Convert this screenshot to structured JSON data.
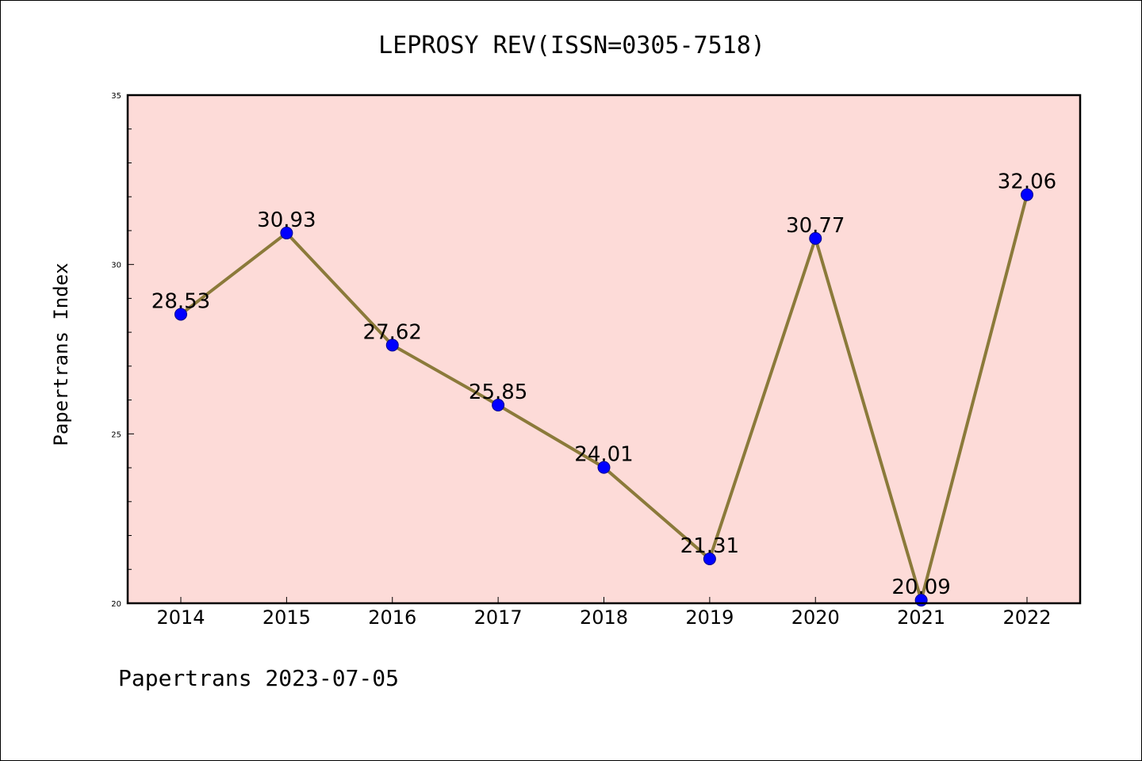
{
  "chart_data": {
    "type": "line",
    "title": "LEPROSY REV(ISSN=0305-7518)",
    "xlabel": "",
    "ylabel": "Papertrans Index",
    "categories": [
      "2014",
      "2015",
      "2016",
      "2017",
      "2018",
      "2019",
      "2020",
      "2021",
      "2022"
    ],
    "values": [
      28.53,
      30.93,
      27.62,
      25.85,
      24.01,
      21.31,
      30.77,
      20.09,
      32.06
    ],
    "value_labels": [
      "28.53",
      "30.93",
      "27.62",
      "25.85",
      "24.01",
      "21.31",
      "30.77",
      "20.09",
      "32.06"
    ],
    "ylim": [
      20,
      35
    ],
    "yticks": [
      "20",
      "25",
      "30",
      "35"
    ],
    "grid": false,
    "colors": {
      "plot_background": "#fddbd8",
      "line": "#8b7a3a",
      "marker": "#0000ff"
    }
  },
  "footer": {
    "text": "Papertrans 2023-07-05"
  }
}
